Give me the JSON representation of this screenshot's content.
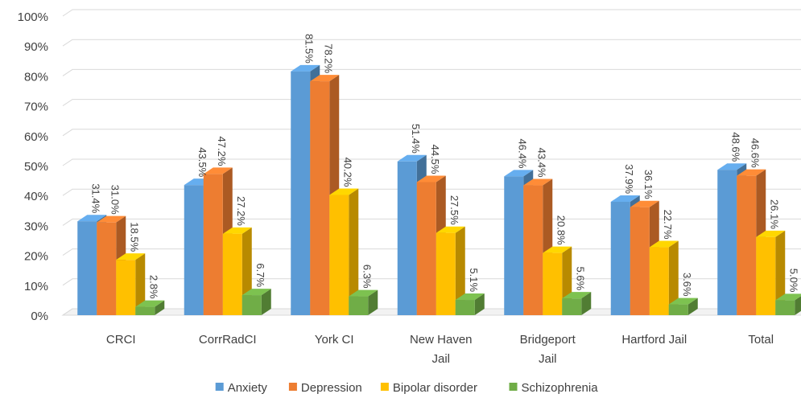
{
  "chart_data": {
    "type": "bar",
    "title": "",
    "xlabel": "",
    "ylabel": "",
    "ylim": [
      0,
      100
    ],
    "y_ticks": [
      "0%",
      "10%",
      "20%",
      "30%",
      "40%",
      "50%",
      "60%",
      "70%",
      "80%",
      "90%",
      "100%"
    ],
    "grid": true,
    "legend_position": "bottom",
    "categories": [
      [
        "CRCI"
      ],
      [
        "CorrRadCI"
      ],
      [
        "York CI"
      ],
      [
        "New Haven",
        "Jail"
      ],
      [
        "Bridgeport",
        "Jail"
      ],
      [
        "Hartford Jail"
      ],
      [
        "Total"
      ]
    ],
    "series": [
      {
        "name": "Anxiety",
        "color": "#5b9bd5",
        "values": [
          31.4,
          43.5,
          81.5,
          51.4,
          46.4,
          37.9,
          48.6
        ],
        "labels": [
          "31.4%",
          "43.5%",
          "81.5%",
          "51.4%",
          "46.4%",
          "37.9%",
          "48.6%"
        ]
      },
      {
        "name": "Depression",
        "color": "#ed7d31",
        "values": [
          31.0,
          47.2,
          78.2,
          44.5,
          43.4,
          36.1,
          46.6
        ],
        "labels": [
          "31.0%",
          "47.2%",
          "78.2%",
          "44.5%",
          "43.4%",
          "36.1%",
          "46.6%"
        ]
      },
      {
        "name": "Bipolar disorder",
        "color": "#ffc000",
        "values": [
          18.5,
          27.2,
          40.2,
          27.5,
          20.8,
          22.7,
          26.1
        ],
        "labels": [
          "18.5%",
          "27.2%",
          "40.2%",
          "27.5%",
          "20.8%",
          "22.7%",
          "26.1%"
        ]
      },
      {
        "name": "Schizophrenia",
        "color": "#70ad47",
        "values": [
          2.8,
          6.7,
          6.3,
          5.1,
          5.6,
          3.6,
          5.0
        ],
        "labels": [
          "2.8%",
          "6.7%",
          "6.3%",
          "5.1%",
          "5.6%",
          "3.6%",
          "5.0%"
        ]
      }
    ]
  }
}
